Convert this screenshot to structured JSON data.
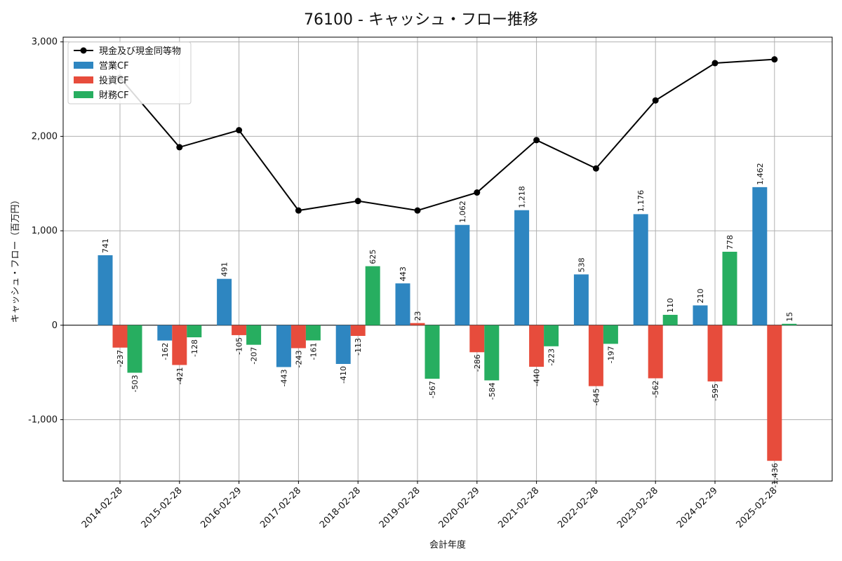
{
  "chart_data": {
    "type": "bar",
    "title": "76100 - キャッシュ・フロー推移",
    "xlabel": "会計年度",
    "ylabel": "キャッシュ・フロー（百万円）",
    "ylim": [
      -1650,
      3050
    ],
    "yticks": [
      -1000,
      0,
      1000,
      2000,
      3000
    ],
    "ytick_labels": [
      "-1,000",
      "0",
      "1,000",
      "2,000",
      "3,000"
    ],
    "grid": true,
    "legend_position": "top-left",
    "categories": [
      "2014-02-28",
      "2015-02-28",
      "2016-02-29",
      "2017-02-28",
      "2018-02-28",
      "2019-02-28",
      "2020-02-29",
      "2021-02-28",
      "2022-02-28",
      "2023-02-28",
      "2024-02-29",
      "2025-02-28"
    ],
    "line_series": {
      "name": "現金及び現金同等物",
      "color": "#000000",
      "values": [
        2620,
        1885,
        2065,
        1215,
        1315,
        1215,
        1405,
        1960,
        1660,
        2380,
        2775,
        2815
      ]
    },
    "series": [
      {
        "name": "営業CF",
        "color": "#2e86c1",
        "values": [
          741,
          -162,
          491,
          -443,
          -410,
          443,
          1062,
          1218,
          538,
          1176,
          210,
          1462
        ],
        "labels": [
          "741",
          "-162",
          "491",
          "-443",
          "-410",
          "443",
          "1,062",
          "1,218",
          "538",
          "1,176",
          "210",
          "1,462"
        ]
      },
      {
        "name": "投資CF",
        "color": "#e74c3c",
        "values": [
          -237,
          -421,
          -105,
          -243,
          -113,
          23,
          -286,
          -440,
          -645,
          -562,
          -595,
          -1436
        ],
        "labels": [
          "-237",
          "-421",
          "-105",
          "-243",
          "-113",
          "23",
          "-286",
          "-440",
          "-645",
          "-562",
          "-595",
          "-1,436"
        ]
      },
      {
        "name": "財務CF",
        "color": "#27ae60",
        "values": [
          -503,
          -128,
          -207,
          -161,
          625,
          -567,
          -584,
          -223,
          -197,
          110,
          778,
          15
        ],
        "labels": [
          "-503",
          "-128",
          "-207",
          "-161",
          "625",
          "-567",
          "-584",
          "-223",
          "-197",
          "110",
          "778",
          "15"
        ]
      }
    ]
  }
}
